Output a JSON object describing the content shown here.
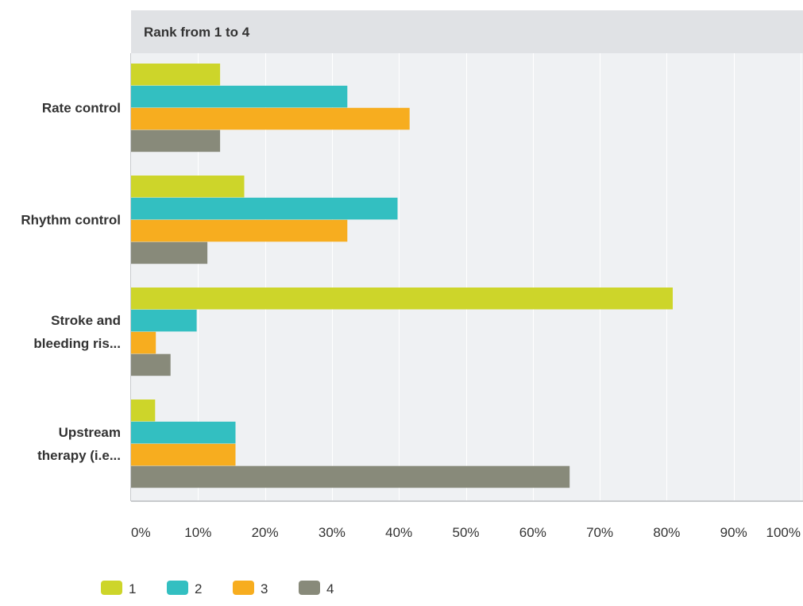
{
  "chart_data": {
    "type": "bar",
    "orientation": "horizontal",
    "header": "Rank from 1 to 4",
    "categories": [
      [
        "Rate control"
      ],
      [
        "Rhythm control"
      ],
      [
        "Stroke and",
        "bleeding ris..."
      ],
      [
        "Upstream",
        "therapy (i.e..."
      ]
    ],
    "series": [
      {
        "name": "1",
        "color": "#cdd52a",
        "values": [
          13.3,
          16.9,
          80.9,
          3.6
        ]
      },
      {
        "name": "2",
        "color": "#33bfc1",
        "values": [
          32.3,
          39.8,
          9.8,
          15.6
        ]
      },
      {
        "name": "3",
        "color": "#f7ad1f",
        "values": [
          41.6,
          32.3,
          3.7,
          15.6
        ]
      },
      {
        "name": "4",
        "color": "#888a7a",
        "values": [
          13.3,
          11.4,
          5.9,
          65.5
        ]
      }
    ],
    "xlim": [
      0,
      100
    ],
    "xticks": [
      "0%",
      "10%",
      "20%",
      "30%",
      "40%",
      "50%",
      "60%",
      "70%",
      "80%",
      "90%",
      "100%"
    ],
    "grid": true,
    "legend_position": "bottom-left"
  }
}
